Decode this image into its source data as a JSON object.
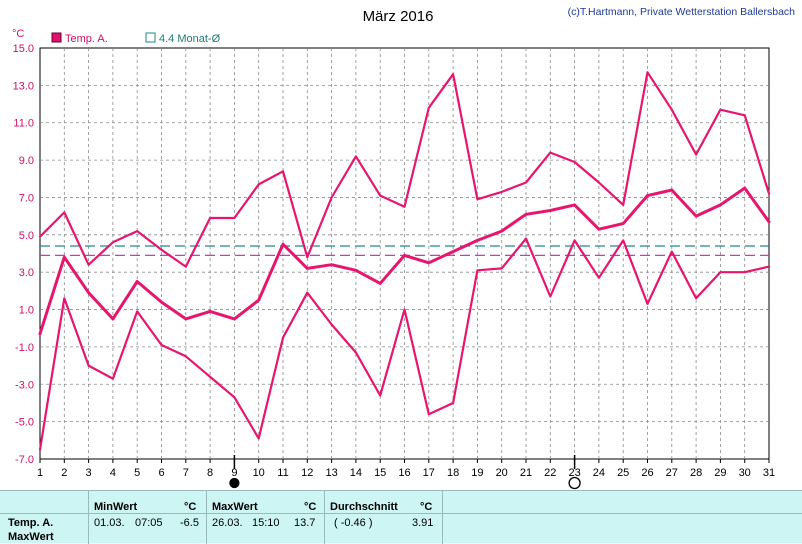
{
  "chart_data": {
    "type": "line",
    "title": "März 2016",
    "copyright": "(c)T.Hartmann, Private Wetterstation Ballersbach",
    "y_unit": "°C",
    "ylim": [
      -7.0,
      15.0
    ],
    "y_ticks": [
      "15.0",
      "13.0",
      "11.0",
      "9.0",
      "7.0",
      "5.0",
      "3.0",
      "1.0",
      "-1.0",
      "-3.0",
      "-5.0",
      "-7.0"
    ],
    "x": [
      1,
      2,
      3,
      4,
      5,
      6,
      7,
      8,
      9,
      10,
      11,
      12,
      13,
      14,
      15,
      16,
      17,
      18,
      19,
      20,
      21,
      22,
      23,
      24,
      25,
      26,
      27,
      28,
      29,
      30,
      31
    ],
    "x_ticks": [
      "1",
      "2",
      "3",
      "4",
      "5",
      "6",
      "7",
      "8",
      "9",
      "10",
      "11",
      "12",
      "13",
      "14",
      "15",
      "16",
      "17",
      "18",
      "19",
      "20",
      "21",
      "22",
      "23",
      "24",
      "25",
      "26",
      "27",
      "28",
      "29",
      "30",
      "31"
    ],
    "grid": true,
    "legend": [
      {
        "label": "Temp. A.",
        "color": "#e0106e",
        "style": "filled-square"
      },
      {
        "label": "4.4 Monat-Ø",
        "color": "#1e8a8a",
        "style": "open-square"
      }
    ],
    "series": [
      {
        "role": "max",
        "color": "#e8156e",
        "values": [
          4.9,
          6.2,
          3.4,
          4.6,
          5.2,
          4.2,
          3.3,
          5.9,
          5.9,
          7.7,
          8.4,
          3.8,
          7.0,
          9.2,
          7.1,
          6.5,
          11.8,
          13.6,
          6.9,
          7.3,
          7.8,
          9.4,
          8.9,
          7.8,
          6.6,
          13.7,
          11.7,
          9.3,
          11.7,
          11.4,
          7.2
        ]
      },
      {
        "role": "mean",
        "color": "#e8156e",
        "values": [
          -0.3,
          3.8,
          1.9,
          0.5,
          2.5,
          1.4,
          0.5,
          0.9,
          0.5,
          1.5,
          4.5,
          3.2,
          3.4,
          3.1,
          2.4,
          3.9,
          3.5,
          4.1,
          4.7,
          5.2,
          6.1,
          6.3,
          6.6,
          5.3,
          5.6,
          7.1,
          7.4,
          6.0,
          6.6,
          7.5,
          5.7
        ]
      },
      {
        "role": "min",
        "color": "#e8156e",
        "values": [
          -6.5,
          1.6,
          -2.0,
          -2.7,
          0.9,
          -0.9,
          -1.5,
          -2.6,
          -3.7,
          -5.9,
          -0.5,
          1.9,
          0.2,
          -1.3,
          -3.6,
          1.0,
          -4.6,
          -4.0,
          3.1,
          3.2,
          4.8,
          1.7,
          4.7,
          2.7,
          4.7,
          1.3,
          4.1,
          1.6,
          3.0,
          3.0,
          3.3
        ]
      }
    ],
    "reference_lines": [
      {
        "value": 4.4,
        "color": "#1e8a8a"
      },
      {
        "value": 3.9,
        "color": "#c03cc8"
      }
    ],
    "moon_phases": [
      {
        "day": 9,
        "phase": "new-moon"
      },
      {
        "day": 23,
        "phase": "full-moon"
      }
    ]
  },
  "footer": {
    "row_label_1": "Temp. A.",
    "row_label_2": "MaxWert",
    "min_header": "MinWert",
    "min_unit": "°C",
    "min_date": "01.03.",
    "min_time": "07:05",
    "min_value": "-6.5",
    "max_header": "MaxWert",
    "max_unit": "°C",
    "max_date": "26.03.",
    "max_time": "15:10",
    "max_value": "13.7",
    "avg_header": "Durchschnitt",
    "avg_unit": "°C",
    "avg_note": "( -0.46 )",
    "avg_value": "3.91"
  }
}
